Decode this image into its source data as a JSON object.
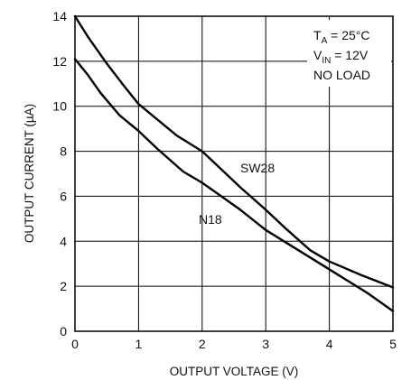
{
  "chart_data": {
    "type": "line",
    "xlabel": "OUTPUT VOLTAGE (V)",
    "ylabel": "OUTPUT CURRENT (µA)",
    "xlim": [
      0,
      5
    ],
    "ylim": [
      0,
      14
    ],
    "xticks": [
      "0",
      "1",
      "2",
      "3",
      "4",
      "5"
    ],
    "yticks": [
      "0",
      "2",
      "4",
      "6",
      "8",
      "10",
      "12",
      "14"
    ],
    "grid": true,
    "conditions": {
      "ta_main": "T",
      "ta_sub": "A",
      "ta_rest": " = 25°C",
      "vin_main": "V",
      "vin_sub": "IN",
      "vin_rest": " = 12V",
      "load": "NO LOAD"
    },
    "series": [
      {
        "name": "SW28",
        "x": [
          0,
          0.2,
          0.5,
          0.8,
          1.0,
          1.3,
          1.6,
          2.0,
          2.3,
          2.6,
          3.0,
          3.3,
          3.7,
          4.0,
          4.5,
          5.0
        ],
        "y": [
          14,
          13.1,
          11.9,
          10.8,
          10.1,
          9.4,
          8.7,
          8.0,
          7.2,
          6.4,
          5.4,
          4.6,
          3.6,
          3.1,
          2.5,
          1.95
        ]
      },
      {
        "name": "N18",
        "x": [
          0,
          0.2,
          0.4,
          0.7,
          1.0,
          1.3,
          1.7,
          2.0,
          2.3,
          2.6,
          3.0,
          3.4,
          3.8,
          4.2,
          4.6,
          5.0
        ],
        "y": [
          12.1,
          11.4,
          10.6,
          9.6,
          8.9,
          8.1,
          7.1,
          6.6,
          6.0,
          5.4,
          4.5,
          3.8,
          3.1,
          2.4,
          1.7,
          0.9
        ]
      }
    ]
  }
}
